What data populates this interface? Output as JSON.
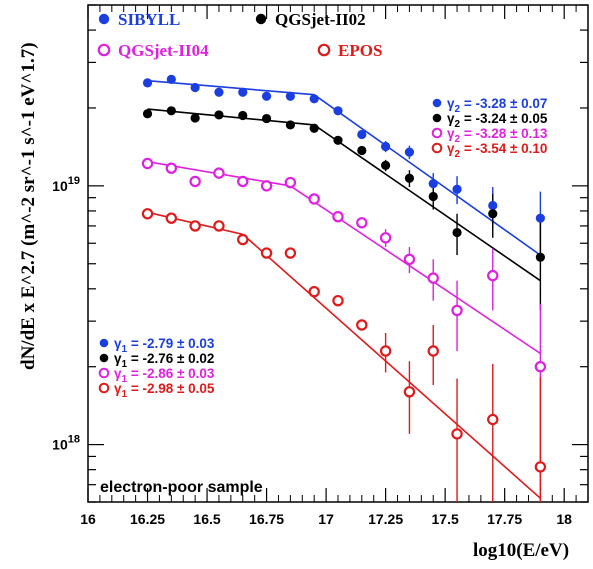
{
  "chart_data": {
    "type": "scatter",
    "yscale": "log",
    "xlim": [
      16.0,
      18.1
    ],
    "ylim": [
      6e+17,
      5e+19
    ],
    "xticks": [
      16,
      16.25,
      16.5,
      16.75,
      17,
      17.25,
      17.5,
      17.75,
      18
    ],
    "xtick_labels": [
      "16",
      "16.25",
      "16.5",
      "16.75",
      "17",
      "17.25",
      "17.5",
      "17.75",
      "18"
    ],
    "xlabel": "log10(E/eV)",
    "ylabel": "dN/dE x E^2.7 (m^-2 sr^-1 s^-1 eV^1.7)",
    "ytick_labels": [
      {
        "value": 1e+18,
        "base": "10",
        "exp": "18"
      },
      {
        "value": 1e+19,
        "base": "10",
        "exp": "19"
      }
    ],
    "annotation": "electron-poor sample",
    "legend": {
      "placement": "top"
    },
    "series": [
      {
        "name": "SIBYLL",
        "color": "#1a3ee0",
        "marker": "filled",
        "x": [
          16.25,
          16.35,
          16.45,
          16.55,
          16.65,
          16.75,
          16.85,
          16.95,
          17.05,
          17.15,
          17.25,
          17.35,
          17.45,
          17.55,
          17.7,
          17.9
        ],
        "y": [
          2.5e+19,
          2.58e+19,
          2.4e+19,
          2.3e+19,
          2.3e+19,
          2.22e+19,
          2.22e+19,
          2.17e+19,
          1.95e+19,
          1.58e+19,
          1.42e+19,
          1.35e+19,
          1.02e+19,
          9.7e+18,
          8.4e+18,
          7.5e+18
        ],
        "err": [
          0,
          0,
          0,
          0,
          0,
          0,
          0,
          0,
          0,
          0,
          7e+17,
          8e+17,
          1e+18,
          1.2e+18,
          1.5e+18,
          2e+18
        ],
        "fit": {
          "x": [
            16.25,
            16.95,
            17.9
          ],
          "y": [
            2.55e+19,
            2.25e+19,
            5.4e+18
          ]
        }
      },
      {
        "name": "QGSjet-II02",
        "color": "#000000",
        "marker": "filled",
        "x": [
          16.25,
          16.35,
          16.45,
          16.55,
          16.65,
          16.75,
          16.85,
          16.95,
          17.05,
          17.15,
          17.25,
          17.35,
          17.45,
          17.55,
          17.7,
          17.9
        ],
        "y": [
          1.9e+19,
          1.95e+19,
          1.83e+19,
          1.88e+19,
          1.87e+19,
          1.82e+19,
          1.72e+19,
          1.67e+19,
          1.5e+19,
          1.37e+19,
          1.2e+19,
          1.07e+19,
          9.1e+18,
          6.6e+18,
          7.8e+18,
          5.3e+18
        ],
        "err": [
          0,
          0,
          0,
          0,
          0,
          0,
          0,
          0,
          0,
          0,
          6e+17,
          8e+17,
          1e+18,
          1.2e+18,
          1.5e+18,
          2e+18
        ],
        "fit": {
          "x": [
            16.25,
            16.95,
            17.9
          ],
          "y": [
            1.98e+19,
            1.72e+19,
            4.3e+18
          ]
        }
      },
      {
        "name": "QGSjet-II04",
        "color": "#e020e0",
        "marker": "open",
        "x": [
          16.25,
          16.35,
          16.45,
          16.55,
          16.65,
          16.75,
          16.85,
          16.95,
          17.05,
          17.15,
          17.25,
          17.35,
          17.45,
          17.55,
          17.7,
          17.9
        ],
        "y": [
          1.22e+19,
          1.17e+19,
          1.04e+19,
          1.12e+19,
          1.04e+19,
          1e+19,
          1.03e+19,
          8.9e+18,
          7.6e+18,
          7.2e+18,
          6.3e+18,
          5.2e+18,
          4.4e+18,
          3.3e+18,
          4.5e+18,
          2e+18
        ],
        "err": [
          0,
          0,
          0,
          0,
          0,
          0,
          0,
          0,
          0,
          0,
          5e+17,
          6e+17,
          8e+17,
          1e+18,
          1.2e+18,
          1.5e+18
        ],
        "fit": {
          "x": [
            16.25,
            16.85,
            17.9
          ],
          "y": [
            1.24e+19,
            1e+19,
            2.25e+18
          ]
        }
      },
      {
        "name": "EPOS",
        "color": "#e01a1a",
        "marker": "open",
        "x": [
          16.25,
          16.35,
          16.45,
          16.55,
          16.65,
          16.75,
          16.85,
          16.95,
          17.05,
          17.15,
          17.25,
          17.35,
          17.45,
          17.55,
          17.7,
          17.9
        ],
        "y": [
          7.8e+18,
          7.5e+18,
          7e+18,
          7e+18,
          6.2e+18,
          5.5e+18,
          5.5e+18,
          3.9e+18,
          3.6e+18,
          2.9e+18,
          2.3e+18,
          1.6e+18,
          2.3e+18,
          1.1e+18,
          1.25e+18,
          8.2e+17
        ],
        "err": [
          0,
          0,
          0,
          0,
          0,
          0,
          0,
          0,
          0,
          0,
          4e+17,
          5e+17,
          6e+17,
          7e+17,
          8e+17,
          1e+18
        ],
        "fit": {
          "x": [
            16.25,
            16.65,
            17.9
          ],
          "y": [
            7.9e+18,
            6.5e+18,
            6.2e+17
          ]
        }
      }
    ],
    "gamma1": [
      {
        "label": "γ",
        "sub": "1",
        "value": " = -2.79 ± 0.03",
        "color": "#1a3ee0",
        "marker": "filled"
      },
      {
        "label": "γ",
        "sub": "1",
        "value": " = -2.76 ± 0.02",
        "color": "#000000",
        "marker": "filled"
      },
      {
        "label": "γ",
        "sub": "1",
        "value": " = -2.86 ± 0.03",
        "color": "#e020e0",
        "marker": "open"
      },
      {
        "label": "γ",
        "sub": "1",
        "value": " = -2.98 ± 0.05",
        "color": "#e01a1a",
        "marker": "open"
      }
    ],
    "gamma2": [
      {
        "label": "γ",
        "sub": "2",
        "value": " = -3.28 ± 0.07",
        "color": "#1a3ee0",
        "marker": "filled"
      },
      {
        "label": "γ",
        "sub": "2",
        "value": " = -3.24 ± 0.05",
        "color": "#000000",
        "marker": "filled"
      },
      {
        "label": "γ",
        "sub": "2",
        "value": " = -3.28 ± 0.13",
        "color": "#e020e0",
        "marker": "open"
      },
      {
        "label": "γ",
        "sub": "2",
        "value": " = -3.54 ± 0.10",
        "color": "#e01a1a",
        "marker": "open"
      }
    ]
  }
}
